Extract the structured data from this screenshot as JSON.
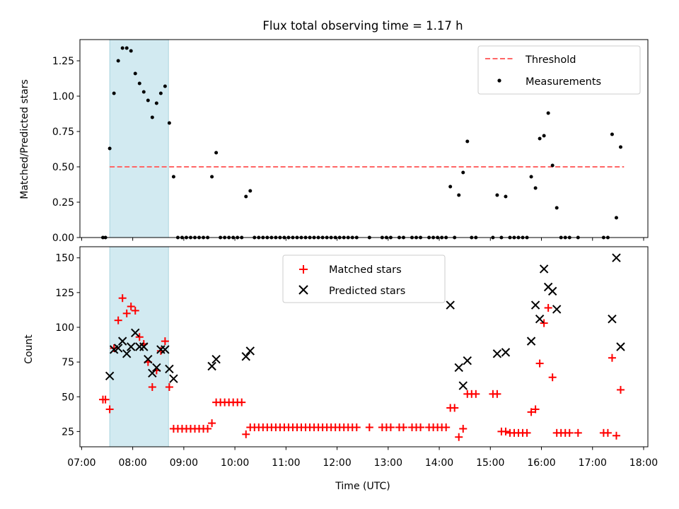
{
  "chart_data": [
    {
      "type": "scatter",
      "title": "Flux total observing time = 1.17 h",
      "xlabel": "",
      "ylabel": "Matched/Predicted stars",
      "ylim": [
        0,
        1.4
      ],
      "yticks": [
        0.0,
        0.25,
        0.5,
        0.75,
        1.0,
        1.25
      ],
      "ytick_labels": [
        "0.00",
        "0.25",
        "0.50",
        "0.75",
        "1.00",
        "1.25"
      ],
      "xlim": [
        "06:58",
        "18:05"
      ],
      "highlight_span": {
        "start": "07:33",
        "end": "08:42",
        "color": "#add8e6"
      },
      "legend_position": "upper right",
      "threshold": {
        "name": "Threshold",
        "y": 0.5,
        "x_start": "07:33",
        "x_end": "17:37",
        "color": "#ff6666",
        "style": "dashed"
      },
      "series": [
        {
          "name": "Measurements",
          "color": "#000000",
          "marker": "dot",
          "points": [
            [
              "07:25",
              0
            ],
            [
              "07:28",
              0
            ],
            [
              "07:33",
              0.63
            ],
            [
              "07:38",
              1.02
            ],
            [
              "07:43",
              1.25
            ],
            [
              "07:48",
              1.34
            ],
            [
              "07:53",
              1.34
            ],
            [
              "07:58",
              1.32
            ],
            [
              "08:03",
              1.16
            ],
            [
              "08:08",
              1.09
            ],
            [
              "08:13",
              1.03
            ],
            [
              "08:18",
              0.97
            ],
            [
              "08:23",
              0.85
            ],
            [
              "08:28",
              0.95
            ],
            [
              "08:33",
              1.02
            ],
            [
              "08:38",
              1.07
            ],
            [
              "08:43",
              0.81
            ],
            [
              "08:48",
              0.43
            ],
            [
              "08:53",
              0
            ],
            [
              "08:58",
              0
            ],
            [
              "09:03",
              0
            ],
            [
              "09:08",
              0
            ],
            [
              "09:13",
              0
            ],
            [
              "09:18",
              0
            ],
            [
              "09:23",
              0
            ],
            [
              "09:28",
              0
            ],
            [
              "09:33",
              0.43
            ],
            [
              "09:38",
              0.6
            ],
            [
              "09:43",
              0
            ],
            [
              "09:48",
              0
            ],
            [
              "09:53",
              0
            ],
            [
              "09:58",
              0
            ],
            [
              "10:03",
              0
            ],
            [
              "10:08",
              0
            ],
            [
              "10:13",
              0.29
            ],
            [
              "10:18",
              0.33
            ],
            [
              "10:23",
              0
            ],
            [
              "10:28",
              0
            ],
            [
              "10:33",
              0
            ],
            [
              "10:38",
              0
            ],
            [
              "10:43",
              0
            ],
            [
              "10:48",
              0
            ],
            [
              "10:53",
              0
            ],
            [
              "10:58",
              0
            ],
            [
              "11:03",
              0
            ],
            [
              "11:08",
              0
            ],
            [
              "11:13",
              0
            ],
            [
              "11:18",
              0
            ],
            [
              "11:23",
              0
            ],
            [
              "11:28",
              0
            ],
            [
              "11:33",
              0
            ],
            [
              "11:38",
              0
            ],
            [
              "11:43",
              0
            ],
            [
              "11:48",
              0
            ],
            [
              "11:53",
              0
            ],
            [
              "11:58",
              0
            ],
            [
              "12:03",
              0
            ],
            [
              "12:08",
              0
            ],
            [
              "12:13",
              0
            ],
            [
              "12:18",
              0
            ],
            [
              "12:23",
              0
            ],
            [
              "12:38",
              0
            ],
            [
              "12:53",
              0
            ],
            [
              "12:58",
              0
            ],
            [
              "13:03",
              0
            ],
            [
              "13:13",
              0
            ],
            [
              "13:18",
              0
            ],
            [
              "13:28",
              0
            ],
            [
              "13:33",
              0
            ],
            [
              "13:38",
              0
            ],
            [
              "13:48",
              0
            ],
            [
              "13:53",
              0
            ],
            [
              "13:58",
              0
            ],
            [
              "14:03",
              0
            ],
            [
              "14:08",
              0
            ],
            [
              "14:13",
              0.36
            ],
            [
              "14:18",
              0
            ],
            [
              "14:23",
              0.3
            ],
            [
              "14:28",
              0.46
            ],
            [
              "14:33",
              0.68
            ],
            [
              "14:38",
              0
            ],
            [
              "14:43",
              0
            ],
            [
              "15:03",
              0
            ],
            [
              "15:08",
              0.3
            ],
            [
              "15:13",
              0
            ],
            [
              "15:18",
              0.29
            ],
            [
              "15:23",
              0
            ],
            [
              "15:28",
              0
            ],
            [
              "15:33",
              0
            ],
            [
              "15:38",
              0
            ],
            [
              "15:43",
              0
            ],
            [
              "15:48",
              0.43
            ],
            [
              "15:53",
              0.35
            ],
            [
              "15:58",
              0.7
            ],
            [
              "16:03",
              0.72
            ],
            [
              "16:08",
              0.88
            ],
            [
              "16:13",
              0.51
            ],
            [
              "16:18",
              0.21
            ],
            [
              "16:23",
              0
            ],
            [
              "16:28",
              0
            ],
            [
              "16:33",
              0
            ],
            [
              "16:43",
              0
            ],
            [
              "17:13",
              0
            ],
            [
              "17:18",
              0
            ],
            [
              "17:23",
              0.73
            ],
            [
              "17:28",
              0.14
            ],
            [
              "17:33",
              0.64
            ]
          ]
        }
      ]
    },
    {
      "type": "scatter",
      "title": "",
      "xlabel": "Time (UTC)",
      "ylabel": "Count",
      "ylim": [
        14,
        158
      ],
      "yticks": [
        25,
        50,
        75,
        100,
        125,
        150
      ],
      "ytick_labels": [
        "25",
        "50",
        "75",
        "100",
        "125",
        "150"
      ],
      "xlim": [
        "06:58",
        "18:05"
      ],
      "xticks": [
        "07:00",
        "08:00",
        "09:00",
        "10:00",
        "11:00",
        "12:00",
        "13:00",
        "14:00",
        "15:00",
        "16:00",
        "17:00",
        "18:00"
      ],
      "xtick_labels": [
        "07:00",
        "08:00",
        "09:00",
        "10:00",
        "11:00",
        "12:00",
        "13:00",
        "14:00",
        "15:00",
        "16:00",
        "17:00",
        "18:00"
      ],
      "highlight_span": {
        "start": "07:33",
        "end": "08:42",
        "color": "#add8e6"
      },
      "legend_position": "upper center",
      "series": [
        {
          "name": "Matched stars",
          "color": "#ff0000",
          "marker": "plus",
          "points": [
            [
              "07:25",
              48
            ],
            [
              "07:28",
              48
            ],
            [
              "07:33",
              41
            ],
            [
              "07:38",
              85
            ],
            [
              "07:43",
              105
            ],
            [
              "07:48",
              121
            ],
            [
              "07:53",
              110
            ],
            [
              "07:58",
              115
            ],
            [
              "08:03",
              112
            ],
            [
              "08:08",
              93
            ],
            [
              "08:13",
              88
            ],
            [
              "08:18",
              75
            ],
            [
              "08:23",
              57
            ],
            [
              "08:28",
              69
            ],
            [
              "08:33",
              83
            ],
            [
              "08:38",
              90
            ],
            [
              "08:43",
              57
            ],
            [
              "08:48",
              27
            ],
            [
              "08:53",
              27
            ],
            [
              "08:58",
              27
            ],
            [
              "09:03",
              27
            ],
            [
              "09:08",
              27
            ],
            [
              "09:13",
              27
            ],
            [
              "09:18",
              27
            ],
            [
              "09:23",
              27
            ],
            [
              "09:28",
              27
            ],
            [
              "09:33",
              31
            ],
            [
              "09:38",
              46
            ],
            [
              "09:43",
              46
            ],
            [
              "09:48",
              46
            ],
            [
              "09:53",
              46
            ],
            [
              "09:58",
              46
            ],
            [
              "10:03",
              46
            ],
            [
              "10:08",
              46
            ],
            [
              "10:13",
              23
            ],
            [
              "10:18",
              28
            ],
            [
              "10:23",
              28
            ],
            [
              "10:28",
              28
            ],
            [
              "10:33",
              28
            ],
            [
              "10:38",
              28
            ],
            [
              "10:43",
              28
            ],
            [
              "10:48",
              28
            ],
            [
              "10:53",
              28
            ],
            [
              "10:58",
              28
            ],
            [
              "11:03",
              28
            ],
            [
              "11:08",
              28
            ],
            [
              "11:13",
              28
            ],
            [
              "11:18",
              28
            ],
            [
              "11:23",
              28
            ],
            [
              "11:28",
              28
            ],
            [
              "11:33",
              28
            ],
            [
              "11:38",
              28
            ],
            [
              "11:43",
              28
            ],
            [
              "11:48",
              28
            ],
            [
              "11:53",
              28
            ],
            [
              "11:58",
              28
            ],
            [
              "12:03",
              28
            ],
            [
              "12:08",
              28
            ],
            [
              "12:13",
              28
            ],
            [
              "12:18",
              28
            ],
            [
              "12:23",
              28
            ],
            [
              "12:38",
              28
            ],
            [
              "12:53",
              28
            ],
            [
              "12:58",
              28
            ],
            [
              "13:03",
              28
            ],
            [
              "13:13",
              28
            ],
            [
              "13:18",
              28
            ],
            [
              "13:28",
              28
            ],
            [
              "13:33",
              28
            ],
            [
              "13:38",
              28
            ],
            [
              "13:48",
              28
            ],
            [
              "13:53",
              28
            ],
            [
              "13:58",
              28
            ],
            [
              "14:03",
              28
            ],
            [
              "14:08",
              28
            ],
            [
              "14:13",
              42
            ],
            [
              "14:18",
              42
            ],
            [
              "14:23",
              21
            ],
            [
              "14:28",
              27
            ],
            [
              "14:33",
              52
            ],
            [
              "14:38",
              52
            ],
            [
              "14:43",
              52
            ],
            [
              "15:03",
              52
            ],
            [
              "15:08",
              52
            ],
            [
              "15:13",
              25
            ],
            [
              "15:18",
              25
            ],
            [
              "15:23",
              24
            ],
            [
              "15:28",
              24
            ],
            [
              "15:33",
              24
            ],
            [
              "15:38",
              24
            ],
            [
              "15:43",
              24
            ],
            [
              "15:48",
              39
            ],
            [
              "15:53",
              41
            ],
            [
              "15:58",
              74
            ],
            [
              "16:03",
              103
            ],
            [
              "16:08",
              114
            ],
            [
              "16:13",
              64
            ],
            [
              "16:18",
              24
            ],
            [
              "16:23",
              24
            ],
            [
              "16:28",
              24
            ],
            [
              "16:33",
              24
            ],
            [
              "16:43",
              24
            ],
            [
              "17:13",
              24
            ],
            [
              "17:18",
              24
            ],
            [
              "17:23",
              78
            ],
            [
              "17:28",
              22
            ],
            [
              "17:33",
              55
            ]
          ]
        },
        {
          "name": "Predicted stars",
          "color": "#000000",
          "marker": "x",
          "points": [
            [
              "07:33",
              65
            ],
            [
              "07:38",
              84
            ],
            [
              "07:43",
              85
            ],
            [
              "07:48",
              90
            ],
            [
              "07:53",
              81
            ],
            [
              "07:58",
              86
            ],
            [
              "08:03",
              96
            ],
            [
              "08:08",
              86
            ],
            [
              "08:13",
              86
            ],
            [
              "08:18",
              77
            ],
            [
              "08:23",
              67
            ],
            [
              "08:28",
              71
            ],
            [
              "08:33",
              84
            ],
            [
              "08:38",
              84
            ],
            [
              "08:43",
              70
            ],
            [
              "08:48",
              63
            ],
            [
              "09:33",
              72
            ],
            [
              "09:38",
              77
            ],
            [
              "10:13",
              79
            ],
            [
              "10:18",
              83
            ],
            [
              "14:13",
              116
            ],
            [
              "14:23",
              71
            ],
            [
              "14:28",
              58
            ],
            [
              "14:33",
              76
            ],
            [
              "15:08",
              81
            ],
            [
              "15:18",
              82
            ],
            [
              "15:48",
              90
            ],
            [
              "15:53",
              116
            ],
            [
              "15:58",
              106
            ],
            [
              "16:03",
              142
            ],
            [
              "16:08",
              129
            ],
            [
              "16:13",
              126
            ],
            [
              "16:18",
              113
            ],
            [
              "17:23",
              106
            ],
            [
              "17:28",
              150
            ],
            [
              "17:33",
              86
            ]
          ]
        }
      ]
    }
  ]
}
